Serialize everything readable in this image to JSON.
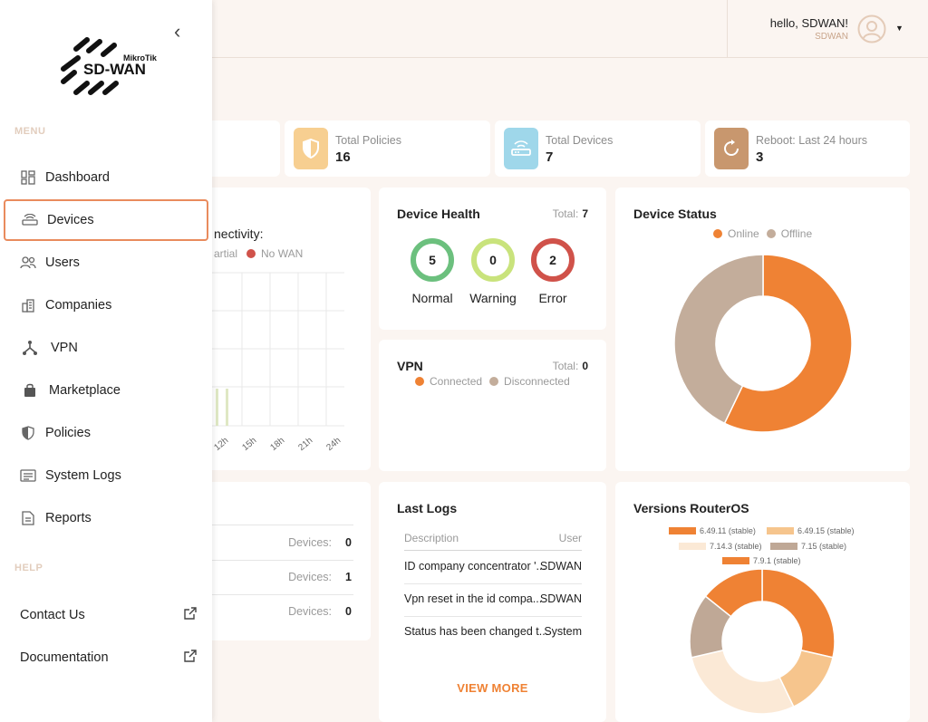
{
  "user": {
    "greeting": "hello, SDWAN!",
    "name": "SDWAN"
  },
  "stats": [
    {
      "label": "Total Policies",
      "value": "16",
      "icon": "shield-icon",
      "color": "#f7cf91"
    },
    {
      "label": "Total Devices",
      "value": "7",
      "icon": "router-icon",
      "color": "#9fd7ea"
    },
    {
      "label": "Reboot: Last 24 hours",
      "value": "3",
      "icon": "refresh-icon",
      "color": "#c8976e"
    }
  ],
  "connectivity": {
    "title_fragment": "nectivity:",
    "legend_partial": "artial",
    "legend_nowan": "No WAN",
    "x_ticks": [
      "12h",
      "15h",
      "18h",
      "21h",
      "24h"
    ]
  },
  "device_health": {
    "title": "Device Health",
    "total_label": "Total:",
    "total": "7",
    "items": [
      {
        "value": "5",
        "label": "Normal",
        "color": "#6cc07e"
      },
      {
        "value": "0",
        "label": "Warning",
        "color": "#c9e37c"
      },
      {
        "value": "2",
        "label": "Error",
        "color": "#d0524a"
      }
    ]
  },
  "vpn": {
    "title": "VPN",
    "total_label": "Total:",
    "total": "0",
    "legend": [
      "Connected",
      "Disconnected"
    ]
  },
  "device_status": {
    "title": "Device Status",
    "legend": [
      "Online",
      "Offline"
    ]
  },
  "companies_list": {
    "rows": [
      {
        "label": "Devices:",
        "value": "0"
      },
      {
        "label": "Devices:",
        "value": "1"
      },
      {
        "label": "Devices:",
        "value": "0"
      }
    ]
  },
  "last_logs": {
    "title": "Last Logs",
    "col_description": "Description",
    "col_user": "User",
    "rows": [
      {
        "description": "ID company concentrator '...",
        "user": "SDWAN"
      },
      {
        "description": "Vpn reset in the id compa...",
        "user": "SDWAN"
      },
      {
        "description": "Status has been changed t...",
        "user": "System"
      }
    ],
    "view_more": "VIEW MORE"
  },
  "versions": {
    "title": "Versions RouterOS",
    "legend": [
      "6.49.11 (stable)",
      "6.49.15 (stable)",
      "7.14.3 (stable)",
      "7.15 (stable)",
      "7.9.1 (stable)"
    ]
  },
  "colors": {
    "accent": "#ef8234",
    "offline": "#c3ad9b",
    "v64911": "#ef8234",
    "v64915": "#f6c58d",
    "v7143": "#fbe9d6",
    "v715": "#bfa896",
    "v791": "#ef8234"
  },
  "chart_data": [
    {
      "type": "pie",
      "title": "Device Status",
      "categories": [
        "Online",
        "Offline"
      ],
      "values": [
        4,
        3
      ]
    },
    {
      "type": "pie",
      "title": "Versions RouterOS",
      "categories": [
        "6.49.11 (stable)",
        "6.49.15 (stable)",
        "7.14.3 (stable)",
        "7.15 (stable)",
        "7.9.1 (stable)"
      ],
      "values": [
        2,
        1,
        2,
        1,
        1
      ]
    }
  ],
  "sidebar": {
    "logo_brand": "MikroTik",
    "logo_product": "SD-WAN",
    "menu_title": "MENU",
    "help_title": "HELP",
    "items": [
      {
        "label": "Dashboard",
        "icon": "dashboard-icon"
      },
      {
        "label": "Devices",
        "icon": "router-icon"
      },
      {
        "label": "Users",
        "icon": "users-icon"
      },
      {
        "label": "Companies",
        "icon": "building-icon"
      },
      {
        "label": "VPN",
        "icon": "vpn-icon"
      },
      {
        "label": "Marketplace",
        "icon": "bag-icon"
      },
      {
        "label": "Policies",
        "icon": "shield-icon"
      },
      {
        "label": "System Logs",
        "icon": "logs-icon"
      },
      {
        "label": "Reports",
        "icon": "report-icon"
      }
    ],
    "help_items": [
      {
        "label": "Contact Us"
      },
      {
        "label": "Documentation"
      }
    ]
  }
}
